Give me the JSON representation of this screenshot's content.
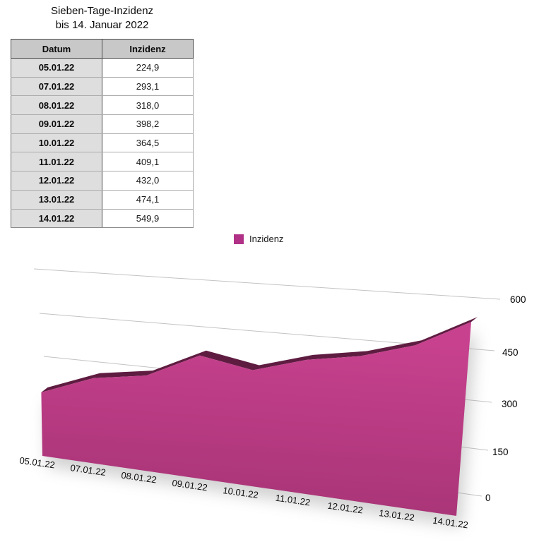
{
  "title": {
    "line1": "Sieben-Tage-Inzidenz",
    "line2": "bis 14. Januar 2022"
  },
  "table": {
    "headers": [
      "Datum",
      "Inzidenz"
    ],
    "rows": [
      [
        "05.01.22",
        "224,9"
      ],
      [
        "07.01.22",
        "293,1"
      ],
      [
        "08.01.22",
        "318,0"
      ],
      [
        "09.01.22",
        "398,2"
      ],
      [
        "10.01.22",
        "364,5"
      ],
      [
        "11.01.22",
        "409,1"
      ],
      [
        "12.01.22",
        "432,0"
      ],
      [
        "13.01.22",
        "474,1"
      ],
      [
        "14.01.22",
        "549,9"
      ]
    ]
  },
  "legend": {
    "label": "Inzidenz",
    "color": "#b13187"
  },
  "chart_data": {
    "type": "area",
    "style": "3d-perspective",
    "title": "Sieben-Tage-Inzidenz bis 14. Januar 2022",
    "categories": [
      "05.01.22",
      "07.01.22",
      "08.01.22",
      "09.01.22",
      "10.01.22",
      "11.01.22",
      "12.01.22",
      "13.01.22",
      "14.01.22"
    ],
    "series": [
      {
        "name": "Inzidenz",
        "values": [
          224.9,
          293.1,
          318.0,
          398.2,
          364.5,
          409.1,
          432.0,
          474.1,
          549.9
        ]
      }
    ],
    "xlabel": "",
    "ylabel": "",
    "ylim": [
      0,
      600
    ],
    "yticks": [
      0,
      150,
      300,
      450,
      600
    ],
    "ytick_labels": [
      "0",
      "150",
      "300",
      "450",
      "600"
    ],
    "grid": true,
    "legend_position": "top-center",
    "colors": {
      "fill_top": "#c7418e",
      "fill_bottom": "#a53374",
      "top_edge": "#5f1c41",
      "gridline": "#c3c3c3",
      "shadow": "#8e8e8e"
    }
  }
}
